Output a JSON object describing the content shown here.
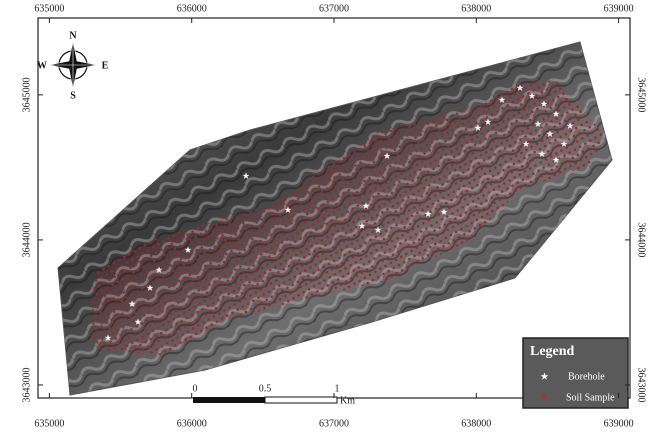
{
  "map": {
    "xticks": [
      635000,
      636000,
      637000,
      638000,
      639000
    ],
    "yticks": [
      3643000,
      3644000,
      3645000
    ],
    "xlim": [
      634920,
      639080
    ],
    "ylim": [
      3642910,
      3645530
    ],
    "compass": {
      "north": "N",
      "south": "S",
      "east": "E",
      "west": "W"
    },
    "scale_bar": {
      "labels": [
        "0",
        "0.5",
        "1"
      ],
      "unit": "Km"
    },
    "legend": {
      "title": "Legend",
      "items": [
        "Borehole",
        "Soil Sample"
      ]
    }
  }
}
